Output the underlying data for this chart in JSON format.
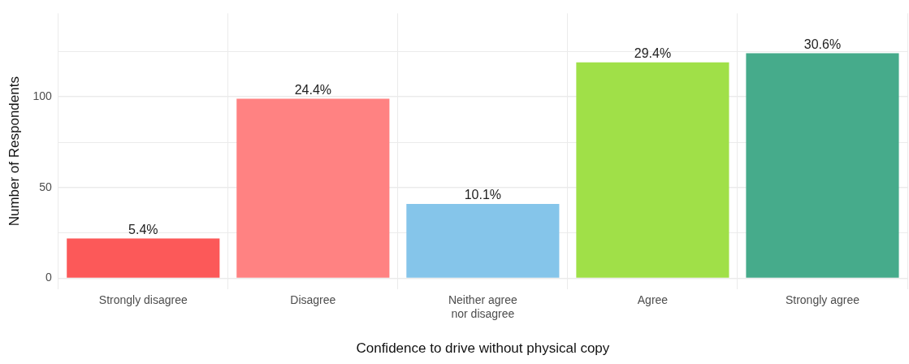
{
  "chart_data": {
    "type": "bar",
    "xlabel": "Confidence to drive without physical copy",
    "ylabel": "Number of Respondents",
    "categories": [
      "Strongly disagree",
      "Disagree",
      "Neither agree\nnor disagree",
      "Agree",
      "Strongly agree"
    ],
    "values": [
      22,
      99,
      41,
      119,
      124
    ],
    "colors": [
      "#fc5959",
      "#ff8282",
      "#85c5ea",
      "#a0e048",
      "#46ab8b"
    ],
    "annotations": [
      {
        "text": "5.4%",
        "x": "Strongly disagree",
        "y": 22
      },
      {
        "text": "24.4%",
        "x": "Disagree",
        "y": 99
      },
      {
        "text": "10.1%",
        "x": "Neither agree\nnor disagree",
        "y": 41
      },
      {
        "text": "29.4%",
        "x": "Agree",
        "y": 119
      },
      {
        "text": "30.6%",
        "x": "Strongly agree",
        "y": 124
      }
    ],
    "ylim": [
      -6,
      146
    ],
    "yticks": [
      0,
      {
        "value": 25,
        "label": null
      },
      50,
      {
        "value": 75,
        "label": null
      },
      100,
      {
        "value": 125,
        "label": null
      }
    ],
    "grid": true,
    "legend": false
  }
}
